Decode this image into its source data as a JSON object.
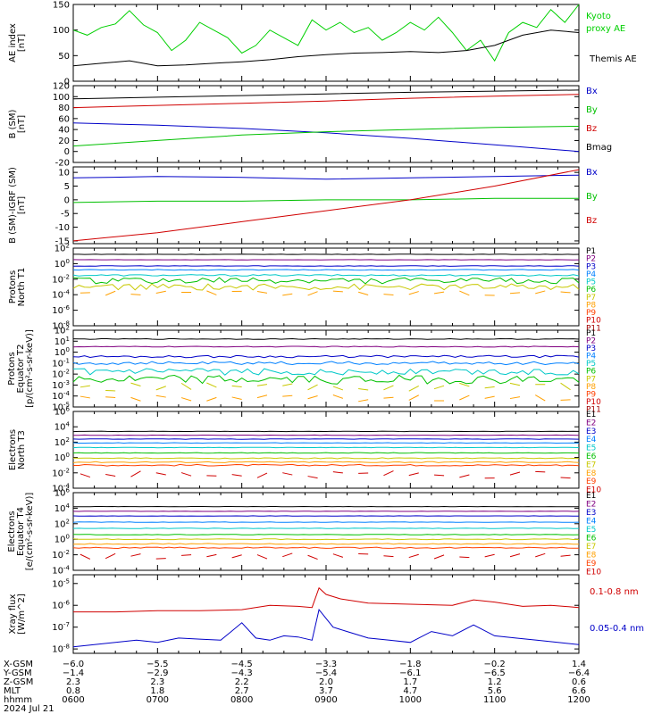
{
  "date_label": "2024 Jul 21",
  "time_axis": {
    "row_labels": [
      "X-GSM",
      "Y-GSM",
      "Z-GSM",
      "MLT",
      "hhmm"
    ],
    "ticks": [
      {
        "hhmm": "0600",
        "values": [
          "-6.0",
          "-1.4",
          "2.3",
          "0.8"
        ]
      },
      {
        "hhmm": "0700",
        "values": [
          "-5.5",
          "-2.9",
          "2.3",
          "1.8"
        ]
      },
      {
        "hhmm": "0800",
        "values": [
          "-4.5",
          "-4.3",
          "2.2",
          "2.7"
        ]
      },
      {
        "hhmm": "0900",
        "values": [
          "-3.3",
          "-5.4",
          "2.0",
          "3.7"
        ]
      },
      {
        "hhmm": "1000",
        "values": [
          "-1.8",
          "-6.1",
          "1.7",
          "4.7"
        ]
      },
      {
        "hhmm": "1100",
        "values": [
          "-0.2",
          "-6.5",
          "1.2",
          "5.6"
        ]
      },
      {
        "hhmm": "1200",
        "values": [
          "1.4",
          "-6.4",
          "0.6",
          "6.6"
        ]
      }
    ]
  },
  "chart_data": [
    {
      "type": "line",
      "ylabel": [
        "AE index",
        "[nT]"
      ],
      "ylim": [
        0,
        150
      ],
      "scale": "linear",
      "y_ticks": [
        0,
        50,
        100,
        150
      ],
      "tick_labels": [
        "0",
        "50",
        "100",
        "150"
      ],
      "series": [
        {
          "name": "Kyoto proxy AE",
          "color": "#00d000",
          "x": [
            "06:00",
            "06:10",
            "06:20",
            "06:30",
            "06:40",
            "06:50",
            "07:00",
            "07:10",
            "07:20",
            "07:30",
            "07:40",
            "07:50",
            "08:00",
            "08:10",
            "08:20",
            "08:30",
            "08:40",
            "08:50",
            "09:00",
            "09:10",
            "09:20",
            "09:30",
            "09:40",
            "09:50",
            "10:00",
            "10:10",
            "10:20",
            "10:30",
            "10:40",
            "10:50",
            "11:00",
            "11:10",
            "11:20",
            "11:30",
            "11:40",
            "11:50",
            "12:00"
          ],
          "values": [
            100,
            90,
            105,
            112,
            138,
            110,
            95,
            60,
            80,
            115,
            100,
            85,
            55,
            70,
            100,
            85,
            70,
            120,
            100,
            115,
            95,
            105,
            80,
            95,
            115,
            100,
            125,
            95,
            60,
            80,
            40,
            95,
            115,
            105,
            140,
            115,
            150
          ]
        },
        {
          "name": "Themis AE",
          "color": "#000000",
          "x": [
            "06:00",
            "06:20",
            "06:40",
            "07:00",
            "07:20",
            "07:40",
            "08:00",
            "08:20",
            "08:40",
            "09:00",
            "09:20",
            "09:40",
            "10:00",
            "10:20",
            "10:40",
            "11:00",
            "11:20",
            "11:40",
            "12:00"
          ],
          "values": [
            30,
            35,
            40,
            30,
            32,
            35,
            38,
            42,
            48,
            52,
            55,
            56,
            58,
            56,
            60,
            70,
            90,
            100,
            95
          ]
        }
      ]
    },
    {
      "type": "line",
      "ylabel": [
        "B (SM)",
        "[nT]"
      ],
      "ylim": [
        -20,
        120
      ],
      "scale": "linear",
      "y_ticks": [
        -20,
        0,
        20,
        40,
        60,
        80,
        100,
        120
      ],
      "tick_labels": [
        "-20",
        "0",
        "20",
        "40",
        "60",
        "80",
        "100",
        "120"
      ],
      "series": [
        {
          "name": "Bx",
          "color": "#0000c8",
          "x": [
            "06:00",
            "07:00",
            "08:00",
            "09:00",
            "10:00",
            "11:00",
            "12:00"
          ],
          "values": [
            52,
            48,
            42,
            34,
            24,
            12,
            0
          ]
        },
        {
          "name": "By",
          "color": "#00c000",
          "x": [
            "06:00",
            "07:00",
            "08:00",
            "09:00",
            "10:00",
            "11:00",
            "12:00"
          ],
          "values": [
            10,
            20,
            30,
            36,
            40,
            44,
            46
          ]
        },
        {
          "name": "Bz",
          "color": "#d00000",
          "x": [
            "06:00",
            "07:00",
            "08:00",
            "09:00",
            "10:00",
            "11:00",
            "12:00"
          ],
          "values": [
            80,
            84,
            88,
            92,
            97,
            101,
            104
          ]
        },
        {
          "name": "Bmag",
          "color": "#000000",
          "x": [
            "06:00",
            "07:00",
            "08:00",
            "09:00",
            "10:00",
            "11:00",
            "12:00"
          ],
          "values": [
            96,
            99,
            102,
            105,
            108,
            110,
            112
          ]
        }
      ]
    },
    {
      "type": "line",
      "ylabel": [
        "B (SM)-IGRF (SM)",
        "[nT]"
      ],
      "ylim": [
        -16,
        12
      ],
      "scale": "linear",
      "y_ticks": [
        -15,
        -10,
        -5,
        0,
        5,
        10
      ],
      "tick_labels": [
        "-15",
        "-10",
        "-5",
        "0",
        "5",
        "10"
      ],
      "series": [
        {
          "name": "Bx",
          "color": "#0000c8",
          "x": [
            "06:00",
            "07:00",
            "08:00",
            "09:00",
            "10:00",
            "11:00",
            "12:00"
          ],
          "values": [
            8,
            8.5,
            8.2,
            7.5,
            8,
            8.5,
            9
          ]
        },
        {
          "name": "By",
          "color": "#00c000",
          "x": [
            "06:00",
            "07:00",
            "08:00",
            "09:00",
            "10:00",
            "11:00",
            "12:00"
          ],
          "values": [
            -1,
            -0.5,
            -0.5,
            0,
            0,
            0.5,
            0.5
          ]
        },
        {
          "name": "Bz",
          "color": "#d00000",
          "x": [
            "06:00",
            "07:00",
            "08:00",
            "09:00",
            "10:00",
            "11:00",
            "12:00"
          ],
          "values": [
            -15,
            -12,
            -8,
            -4,
            0,
            5,
            11
          ]
        }
      ]
    },
    {
      "type": "line",
      "ylabel": [
        "Protons",
        "North T1"
      ],
      "ylim": [
        -8,
        2
      ],
      "scale": "log",
      "y_ticks": [
        -8,
        -6,
        -4,
        -2,
        0,
        2
      ],
      "tick_labels": [
        "10-8",
        "10-6",
        "10-4",
        "10-2",
        "100",
        "102"
      ],
      "series": [
        {
          "name": "P1",
          "color": "#000000",
          "level": 1.2,
          "jitter": 0.02
        },
        {
          "name": "P2",
          "color": "#800080",
          "level": 0.5,
          "jitter": 0.02
        },
        {
          "name": "P3",
          "color": "#0000c8",
          "level": -0.3,
          "jitter": 0.04
        },
        {
          "name": "P4",
          "color": "#0080ff",
          "level": -0.8,
          "jitter": 0.05
        },
        {
          "name": "P5",
          "color": "#00c8c8",
          "level": -1.5,
          "jitter": 0.1
        },
        {
          "name": "P6",
          "color": "#00c000",
          "level": -2.2,
          "jitter": 0.4
        },
        {
          "name": "P7",
          "color": "#c8c800",
          "level": -3.0,
          "jitter": 0.4
        },
        {
          "name": "P8",
          "color": "#ffa000",
          "level": -3.8,
          "jitter": 0.3,
          "sparse": true
        },
        {
          "name": "P9",
          "color": "#ff4000",
          "level": -8,
          "jitter": 0
        },
        {
          "name": "P10",
          "color": "#d00000",
          "level": -8,
          "jitter": 0
        },
        {
          "name": "P11",
          "color": "#a00000",
          "level": -8,
          "jitter": 0
        }
      ]
    },
    {
      "type": "line",
      "ylabel": [
        "Protons",
        "Equator T2",
        "[p/(cm²-s-sr-keV)]"
      ],
      "ylim": [
        -5,
        2
      ],
      "scale": "log",
      "y_ticks": [
        -5,
        -4,
        -3,
        -2,
        -1,
        0,
        1,
        2
      ],
      "tick_labels": [
        "10-5",
        "10-4",
        "10-3",
        "10-2",
        "10-1",
        "100",
        "101",
        "102"
      ],
      "series": [
        {
          "name": "P1",
          "color": "#000000",
          "level": 1.2,
          "jitter": 0.03
        },
        {
          "name": "P2",
          "color": "#800080",
          "level": 0.5,
          "jitter": 0.04
        },
        {
          "name": "P3",
          "color": "#0000c8",
          "level": -0.4,
          "jitter": 0.1
        },
        {
          "name": "P4",
          "color": "#0080ff",
          "level": -1.0,
          "jitter": 0.15
        },
        {
          "name": "P5",
          "color": "#00c8c8",
          "level": -1.8,
          "jitter": 0.3
        },
        {
          "name": "P6",
          "color": "#00c000",
          "level": -2.5,
          "jitter": 0.4
        },
        {
          "name": "P7",
          "color": "#c8c800",
          "level": -3.2,
          "jitter": 0.4,
          "sparse": true
        },
        {
          "name": "P8",
          "color": "#ffa000",
          "level": -4.2,
          "jitter": 0.3,
          "sparse": true
        },
        {
          "name": "P9",
          "color": "#ff4000",
          "level": -5,
          "jitter": 0
        },
        {
          "name": "P10",
          "color": "#d00000",
          "level": -5,
          "jitter": 0
        },
        {
          "name": "P11",
          "color": "#a00000",
          "level": -5,
          "jitter": 0
        }
      ]
    },
    {
      "type": "line",
      "ylabel": [
        "Electrons",
        "North T3"
      ],
      "ylim": [
        -4,
        6
      ],
      "scale": "log",
      "y_ticks": [
        -4,
        -2,
        0,
        2,
        4,
        6
      ],
      "tick_labels": [
        "10-4",
        "10-2",
        "100",
        "102",
        "104",
        "106"
      ],
      "series": [
        {
          "name": "E1",
          "color": "#000000",
          "level": 3.4,
          "jitter": 0.03
        },
        {
          "name": "E2",
          "color": "#800080",
          "level": 2.9,
          "jitter": 0.03
        },
        {
          "name": "E3",
          "color": "#0000c8",
          "level": 2.4,
          "jitter": 0.03
        },
        {
          "name": "E4",
          "color": "#0080ff",
          "level": 1.9,
          "jitter": 0.03
        },
        {
          "name": "E5",
          "color": "#00c8c8",
          "level": 1.3,
          "jitter": 0.03
        },
        {
          "name": "E6",
          "color": "#00c000",
          "level": 0.6,
          "jitter": 0.04
        },
        {
          "name": "E7",
          "color": "#c8c800",
          "level": -0.1,
          "jitter": 0.06
        },
        {
          "name": "E8",
          "color": "#ffa000",
          "level": -0.6,
          "jitter": 0.08
        },
        {
          "name": "E9",
          "color": "#ff4000",
          "level": -1.0,
          "jitter": 0.1
        },
        {
          "name": "E10",
          "color": "#d00000",
          "level": -2.2,
          "jitter": 0.5,
          "sparse": true
        }
      ]
    },
    {
      "type": "line",
      "ylabel": [
        "Electrons",
        "Equator T4",
        "[e/(cm²-s-sr-keV)]"
      ],
      "ylim": [
        -4,
        6
      ],
      "scale": "log",
      "y_ticks": [
        -4,
        -2,
        0,
        2,
        4,
        6
      ],
      "tick_labels": [
        "10-4",
        "10-2",
        "100",
        "102",
        "104",
        "106"
      ],
      "series": [
        {
          "name": "E1",
          "color": "#000000",
          "level": 4.2,
          "jitter": 0.02
        },
        {
          "name": "E2",
          "color": "#800080",
          "level": 3.6,
          "jitter": 0.02
        },
        {
          "name": "E3",
          "color": "#0000c8",
          "level": 3.0,
          "jitter": 0.02
        },
        {
          "name": "E4",
          "color": "#0080ff",
          "level": 2.2,
          "jitter": 0.03
        },
        {
          "name": "E5",
          "color": "#00c8c8",
          "level": 1.4,
          "jitter": 0.03
        },
        {
          "name": "E6",
          "color": "#00c000",
          "level": 0.6,
          "jitter": 0.04
        },
        {
          "name": "E7",
          "color": "#c8c800",
          "level": 0.0,
          "jitter": 0.05
        },
        {
          "name": "E8",
          "color": "#ffa000",
          "level": -0.6,
          "jitter": 0.06
        },
        {
          "name": "E9",
          "color": "#ff4000",
          "level": -1.1,
          "jitter": 0.08
        },
        {
          "name": "E10",
          "color": "#d00000",
          "level": -2.2,
          "jitter": 0.4,
          "sparse": true
        }
      ]
    },
    {
      "type": "line",
      "ylabel": [
        "Xray flux",
        "[W/m^2]"
      ],
      "ylim": [
        -8.2,
        -4.6
      ],
      "scale": "log",
      "y_ticks": [
        -8,
        -7,
        -6,
        -5
      ],
      "tick_labels": [
        "10-8",
        "10-7",
        "10-6",
        "10-5"
      ],
      "series": [
        {
          "name": "0.1-0.8 nm",
          "color": "#d00000",
          "x": [
            "06:00",
            "06:30",
            "07:00",
            "07:30",
            "08:00",
            "08:20",
            "08:40",
            "08:50",
            "08:55",
            "09:00",
            "09:10",
            "09:30",
            "10:00",
            "10:30",
            "10:45",
            "11:00",
            "11:20",
            "11:40",
            "12:00"
          ],
          "values": [
            -6.3,
            -6.3,
            -6.25,
            -6.25,
            -6.2,
            -6.0,
            -6.05,
            -6.1,
            -5.2,
            -5.5,
            -5.7,
            -5.9,
            -5.95,
            -6.0,
            -5.75,
            -5.85,
            -6.05,
            -6.0,
            -6.1
          ]
        },
        {
          "name": "0.05-0.4 nm",
          "color": "#0000c8",
          "x": [
            "06:00",
            "06:15",
            "06:30",
            "06:45",
            "07:00",
            "07:15",
            "07:30",
            "07:45",
            "08:00",
            "08:10",
            "08:20",
            "08:30",
            "08:40",
            "08:50",
            "08:55",
            "09:00",
            "09:05",
            "09:15",
            "09:30",
            "09:45",
            "10:00",
            "10:15",
            "10:30",
            "10:45",
            "11:00",
            "11:15",
            "11:30",
            "11:45",
            "12:00"
          ],
          "values": [
            -7.9,
            -7.8,
            -7.7,
            -7.6,
            -7.7,
            -7.5,
            -7.55,
            -7.6,
            -6.8,
            -7.5,
            -7.6,
            -7.4,
            -7.45,
            -7.6,
            -6.2,
            -6.6,
            -7.0,
            -7.2,
            -7.5,
            -7.6,
            -7.7,
            -7.2,
            -7.4,
            -6.9,
            -7.4,
            -7.5,
            -7.6,
            -7.7,
            -7.8
          ]
        }
      ]
    }
  ]
}
